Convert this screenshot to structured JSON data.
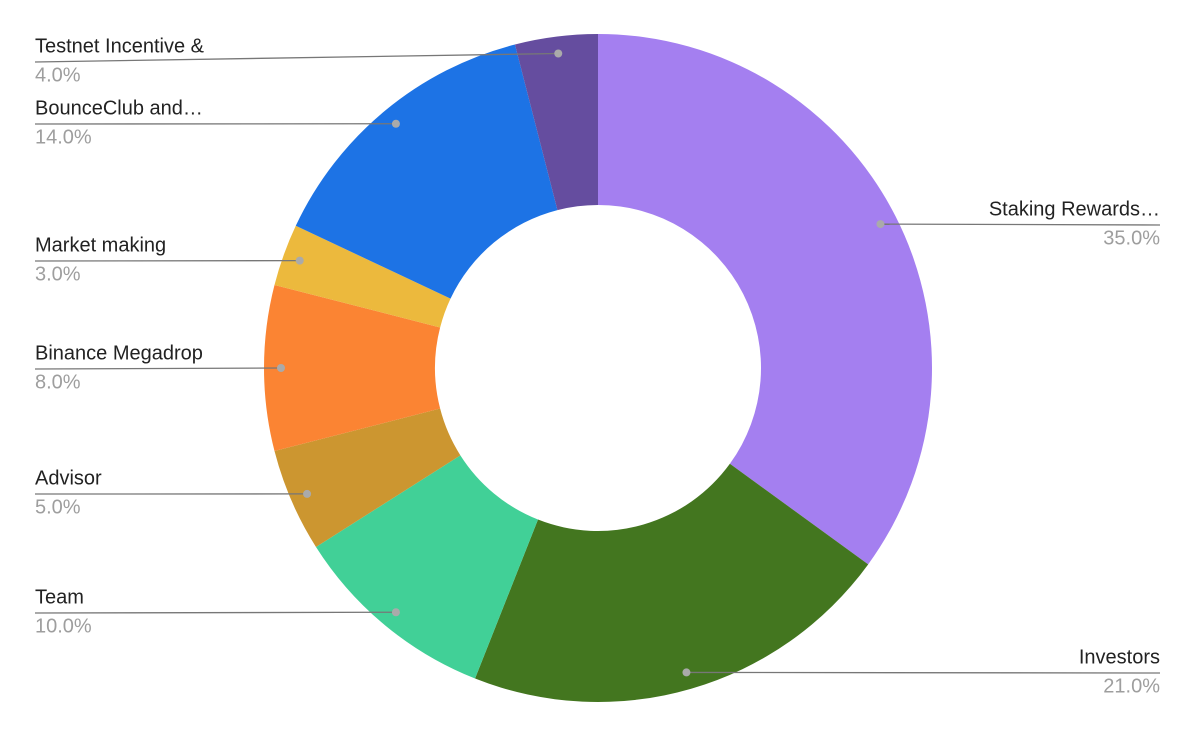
{
  "chart_data": {
    "type": "pie",
    "donut": true,
    "categories": [
      "Staking Rewards…",
      "Investors",
      "Team",
      "Advisor",
      "Binance Megadrop",
      "Market making",
      "BounceClub and…",
      "Testnet Incentive &"
    ],
    "values": [
      35,
      21,
      10,
      5,
      8,
      3,
      14,
      4
    ],
    "value_labels": [
      "35.0%",
      "21.0%",
      "10.0%",
      "5.0%",
      "8.0%",
      "3.0%",
      "14.0%",
      "4.0%"
    ],
    "colors": [
      "#a47ff0",
      "#43761f",
      "#41d097",
      "#cc9630",
      "#fb8433",
      "#ecb93d",
      "#1d73e5",
      "#654d9f"
    ]
  }
}
